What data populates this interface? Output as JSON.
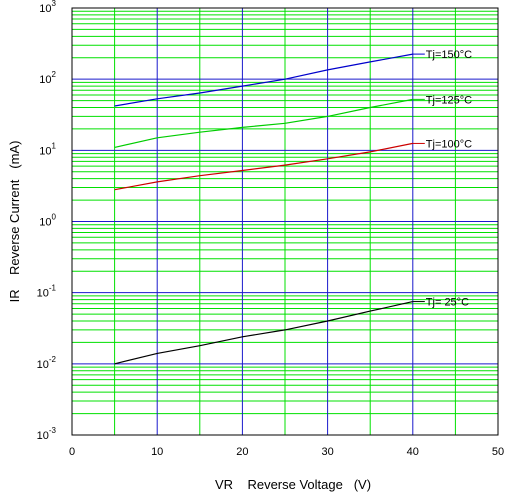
{
  "chart_data": {
    "type": "line",
    "xlabel": "VR    Reverse Voltage   (V)",
    "ylabel": "IR    Reverse Current   (mA)",
    "xlim": [
      0,
      50
    ],
    "ylim_log10": [
      -3,
      3
    ],
    "y_scale": "log",
    "grid": true,
    "x_ticks": [
      "0",
      "10",
      "20",
      "30",
      "40",
      "50"
    ],
    "y_tick_base": "10",
    "y_tick_exponents": [
      "-3",
      "-2",
      "-1",
      "0",
      "1",
      "2",
      "3"
    ],
    "series": [
      {
        "name": "Tj=150°C",
        "color": "#0000cc",
        "x": [
          5,
          10,
          15,
          20,
          25,
          30,
          35,
          40
        ],
        "y": [
          42,
          53,
          64,
          80,
          100,
          135,
          175,
          225
        ]
      },
      {
        "name": "Tj=125°C",
        "color": "#00cc00",
        "x": [
          5,
          10,
          15,
          20,
          25,
          30,
          35,
          40
        ],
        "y": [
          11,
          15,
          18,
          21,
          24,
          30,
          40,
          52
        ]
      },
      {
        "name": "Tj=100°C",
        "color": "#cc0000",
        "x": [
          5,
          10,
          15,
          20,
          25,
          30,
          35,
          40
        ],
        "y": [
          2.8,
          3.6,
          4.4,
          5.2,
          6.2,
          7.6,
          9.5,
          12.5
        ]
      },
      {
        "name": "Tj= 25°C",
        "color": "#000000",
        "x": [
          5,
          10,
          15,
          20,
          25,
          30,
          35,
          40
        ],
        "y": [
          0.01,
          0.014,
          0.018,
          0.024,
          0.03,
          0.04,
          0.055,
          0.075
        ]
      }
    ],
    "colors": {
      "minor_grid": "#00e000",
      "major_grid": "#1a1acc",
      "frame": "#000000"
    }
  }
}
